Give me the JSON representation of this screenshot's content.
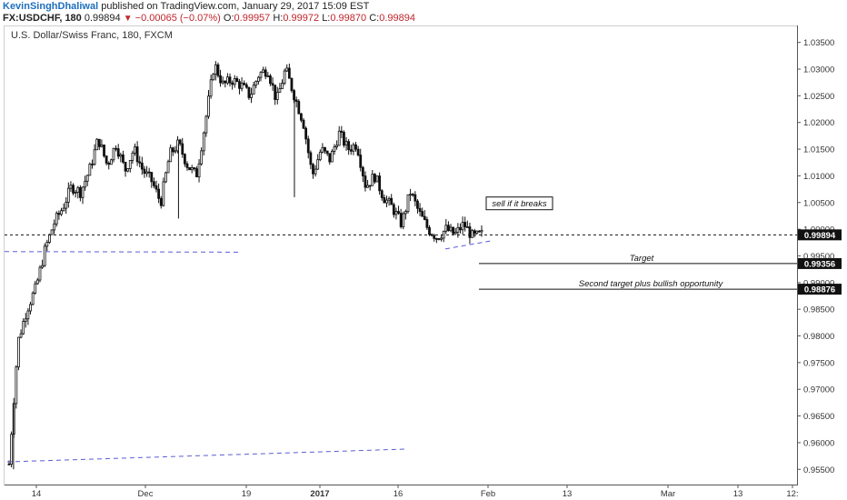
{
  "header": {
    "author": "KevinSinghDhaliwal",
    "published_text": "published on TradingView.com, January 29, 2017 15:09 EST",
    "symbol": "FX:USDCHF, 180",
    "last": "0.99894",
    "change": "−0.00065 (−0.07%)",
    "open_label": "O:",
    "open": "0.99957",
    "high_label": "H:",
    "high": "0.99972",
    "low_label": "L:",
    "low": "0.99870",
    "close_label": "C:",
    "close": "0.99894"
  },
  "colors": {
    "candle": "#111111",
    "dashed_blue": "#5b5bd6",
    "negative": "#c0262d",
    "author": "#1e6fbd",
    "axis": "#555555"
  },
  "chart_data": {
    "type": "candlestick",
    "title": "U.S. Dollar/Swiss Franc, 180, FXCM",
    "ylim": [
      0.953,
      1.0375
    ],
    "y_ticks": [
      0.955,
      0.96,
      0.965,
      0.97,
      0.975,
      0.98,
      0.985,
      0.99,
      0.995,
      1.0,
      1.005,
      1.01,
      1.015,
      1.02,
      1.025,
      1.03,
      1.035
    ],
    "y_tick_labels": [
      "0.95500",
      "0.96000",
      "0.96500",
      "0.97000",
      "0.97500",
      "0.98000",
      "0.98500",
      "0.99000",
      "0.99500",
      "1.00000",
      "1.00500",
      "1.01000",
      "1.01500",
      "1.02000",
      "1.02500",
      "1.03000",
      "1.03500"
    ],
    "x_tick_labels": [
      "14",
      "Dec",
      "19",
      "2017",
      "16",
      "Feb",
      "13",
      "Mar",
      "13",
      "12:"
    ],
    "price_labels": [
      {
        "value": 0.99894,
        "text": "0.99894"
      },
      {
        "value": 0.99356,
        "text": "0.99356"
      },
      {
        "value": 0.98876,
        "text": "0.98876"
      }
    ],
    "annotations": [
      {
        "text": "sell if it breaks",
        "boxed": true
      },
      {
        "text": "Target",
        "level": 0.99356
      },
      {
        "text": "Second target plus bullish opportunity",
        "level": 0.98876
      }
    ],
    "horizontal_line": {
      "value": 0.99894,
      "style": "dashed"
    },
    "series_path": [
      [
        0,
        0.956
      ],
      [
        2,
        0.979
      ],
      [
        4,
        0.985
      ],
      [
        6,
        0.989
      ],
      [
        8,
        0.996
      ],
      [
        10,
        1.001
      ],
      [
        12,
        1.004
      ],
      [
        14,
        1.008
      ],
      [
        16,
        1.007
      ],
      [
        18,
        1.011
      ],
      [
        20,
        1.017
      ],
      [
        22,
        1.012
      ],
      [
        24,
        1.016
      ],
      [
        26,
        1.011
      ],
      [
        28,
        1.015
      ],
      [
        30,
        1.011
      ],
      [
        32,
        1.009
      ],
      [
        34,
        1.005
      ],
      [
        36,
        1.014
      ],
      [
        38,
        1.016
      ],
      [
        40,
        1.012
      ],
      [
        42,
        1.01
      ],
      [
        44,
        1.02
      ],
      [
        46,
        1.031
      ],
      [
        48,
        1.027
      ],
      [
        50,
        1.028
      ],
      [
        52,
        1.027
      ],
      [
        54,
        1.025
      ],
      [
        56,
        1.029
      ],
      [
        58,
        1.03
      ],
      [
        60,
        1.024
      ],
      [
        62,
        1.03
      ],
      [
        64,
        1.025
      ],
      [
        66,
        1.02
      ],
      [
        68,
        1.01
      ],
      [
        70,
        1.015
      ],
      [
        72,
        1.013
      ],
      [
        74,
        1.018
      ],
      [
        76,
        1.015
      ],
      [
        78,
        1.016
      ],
      [
        80,
        1.008
      ],
      [
        82,
        1.01
      ],
      [
        84,
        1.006
      ],
      [
        86,
        1.004
      ],
      [
        88,
        1.001
      ],
      [
        90,
        1.007
      ],
      [
        92,
        1.003
      ],
      [
        94,
        1.0
      ],
      [
        96,
        0.9985
      ],
      [
        98,
        1.0
      ],
      [
        100,
        0.999
      ],
      [
        102,
        1.001
      ],
      [
        104,
        0.9985
      ],
      [
        106,
        0.999
      ]
    ],
    "spikes": [
      {
        "i": 1,
        "low": 0.955
      },
      {
        "i": 64,
        "low": 1.006
      },
      {
        "i": 38,
        "low": 1.002
      }
    ]
  }
}
